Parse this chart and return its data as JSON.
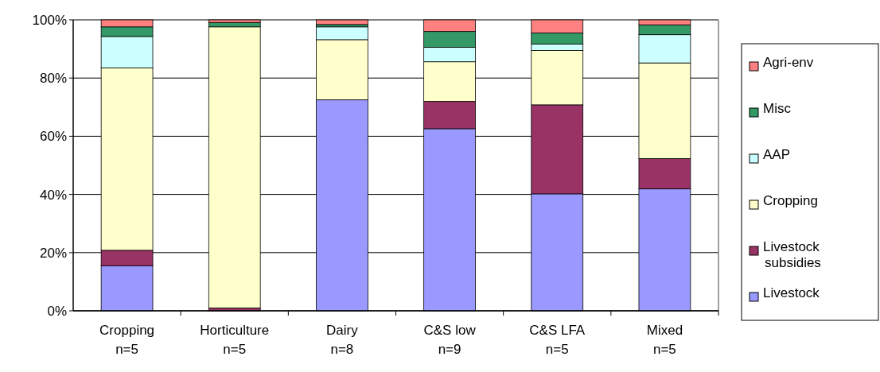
{
  "chart_data": {
    "type": "bar",
    "stacked": true,
    "categories": [
      "Cropping\nn=5",
      "Horticulture\nn=5",
      "Dairy\nn=8",
      "C&S low\nn=9",
      "C&S LFA\nn=5",
      "Mixed\nn=5"
    ],
    "series": [
      {
        "name": "Livestock",
        "color": "#9999ff",
        "values": [
          15.5,
          0,
          72.5,
          62.6,
          40.2,
          41.9
        ]
      },
      {
        "name": "Livestock subsidies",
        "color": "#993366",
        "values": [
          5.3,
          1,
          0,
          9.4,
          30.6,
          10.4
        ]
      },
      {
        "name": "Cropping",
        "color": "#ffffcc",
        "values": [
          62.7,
          96.6,
          20.7,
          13.6,
          18.7,
          32.9
        ]
      },
      {
        "name": "AAP",
        "color": "#ccffff",
        "values": [
          10.8,
          0,
          4.4,
          5.0,
          2.2,
          9.7
        ]
      },
      {
        "name": "Misc",
        "color": "#339966",
        "values": [
          3.3,
          1.5,
          0.8,
          5.4,
          3.8,
          3.4
        ]
      },
      {
        "name": "Agri-env",
        "color": "#ff8080",
        "values": [
          2.4,
          0.9,
          1.6,
          4.0,
          4.5,
          1.7
        ]
      }
    ],
    "ylim": [
      0,
      100
    ],
    "yticks": [
      {
        "value": 0,
        "label": "0%"
      },
      {
        "value": 20,
        "label": "20%"
      },
      {
        "value": 40,
        "label": "40%"
      },
      {
        "value": 60,
        "label": "60%"
      },
      {
        "value": 80,
        "label": "80%"
      },
      {
        "value": 100,
        "label": "100%"
      }
    ],
    "grid": "y",
    "legend": "right"
  }
}
